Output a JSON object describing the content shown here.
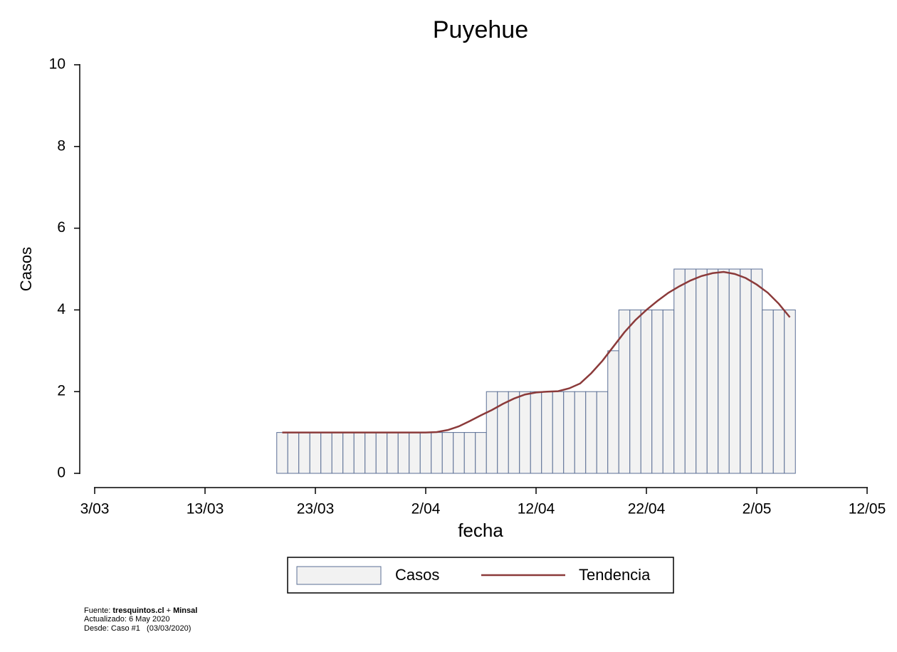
{
  "chart_data": {
    "type": "bar_line",
    "title": "Puyehue",
    "x_label": "fecha",
    "y_label": "Casos",
    "x": [
      "20/03",
      "21/03",
      "22/03",
      "23/03",
      "24/03",
      "25/03",
      "26/03",
      "27/03",
      "28/03",
      "29/03",
      "30/03",
      "31/03",
      "1/04",
      "2/04",
      "3/04",
      "4/04",
      "5/04",
      "6/04",
      "7/04",
      "8/04",
      "9/04",
      "10/04",
      "11/04",
      "12/04",
      "13/04",
      "14/04",
      "15/04",
      "16/04",
      "17/04",
      "18/04",
      "19/04",
      "20/04",
      "21/04",
      "22/04",
      "23/04",
      "24/04",
      "25/04",
      "26/04",
      "27/04",
      "28/04",
      "29/04",
      "30/04",
      "1/05",
      "2/05",
      "3/05",
      "4/05",
      "5/05"
    ],
    "series": [
      {
        "name": "Casos",
        "color": "#f2f2f2",
        "edge_color": "#5b6f95",
        "values": [
          1,
          1,
          1,
          1,
          1,
          1,
          1,
          1,
          1,
          1,
          1,
          1,
          1,
          1,
          1,
          1,
          1,
          1,
          1,
          2,
          2,
          2,
          2,
          2,
          2,
          2,
          2,
          2,
          2,
          2,
          3,
          4,
          4,
          4,
          4,
          4,
          5,
          5,
          5,
          5,
          5,
          5,
          5,
          5,
          4,
          4,
          4
        ]
      },
      {
        "name": "Tendencia",
        "color": "#8b3a3a",
        "values": [
          1,
          1,
          1,
          1,
          1,
          1,
          1,
          1,
          1,
          1,
          1,
          1,
          1,
          1,
          1.01,
          1.06,
          1.15,
          1.28,
          1.42,
          1.55,
          1.7,
          1.83,
          1.93,
          1.98,
          2,
          2.01,
          2.08,
          2.2,
          2.45,
          2.75,
          3.1,
          3.45,
          3.75,
          4,
          4.22,
          4.42,
          4.58,
          4.72,
          4.83,
          4.9,
          4.93,
          4.88,
          4.78,
          4.62,
          4.42,
          4.15,
          3.82
        ]
      }
    ],
    "xlim": [
      "3/03",
      "12/05"
    ],
    "xticks": [
      "3/03",
      "13/03",
      "23/03",
      "2/04",
      "12/04",
      "22/04",
      "2/05",
      "12/05"
    ],
    "ylim": [
      0,
      10
    ],
    "yticks": [
      0,
      2,
      4,
      6,
      8,
      10
    ],
    "footer": {
      "fuente_label": "Fuente:",
      "fuente_site": "tresquintos.cl",
      "fuente_plus": "+",
      "fuente_org": "Minsal",
      "actualizado": "Actualizado: 6 May 2020",
      "desde": "Desde: Caso #1   (03/03/2020)"
    }
  }
}
